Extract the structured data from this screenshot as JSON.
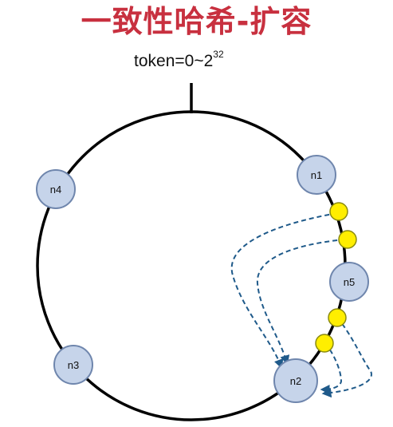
{
  "title": {
    "text": "一致性哈希-扩容",
    "color": "#c8303f"
  },
  "token_range": {
    "label": "token=0~2",
    "exponent": "32"
  },
  "ring": {
    "stroke_color": "#000000"
  },
  "nodes": [
    {
      "id": "n1",
      "label": "n1"
    },
    {
      "id": "n2",
      "label": "n2"
    },
    {
      "id": "n3",
      "label": "n3"
    },
    {
      "id": "n4",
      "label": "n4"
    },
    {
      "id": "n5",
      "label": "n5",
      "role": "new node"
    }
  ],
  "node_style": {
    "fill_color": "#c6d4ea",
    "stroke_color": "#6f86ad"
  },
  "keys": {
    "count": 4,
    "fill_color": "#ffee00",
    "stroke_color": "#8a8a10"
  },
  "migration_arrows": {
    "count": 4,
    "color": "#1f5a8a",
    "style": "dashed"
  }
}
